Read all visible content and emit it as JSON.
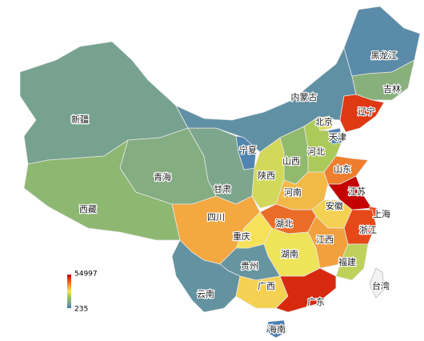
{
  "chart_data": {
    "type": "map",
    "regions": [
      {
        "name": "新疆",
        "value": 8000
      },
      {
        "name": "西藏",
        "value": 14000
      },
      {
        "name": "青海",
        "value": 11000
      },
      {
        "name": "甘肃",
        "value": 9000
      },
      {
        "name": "宁夏",
        "value": 1500
      },
      {
        "name": "内蒙古",
        "value": 4000
      },
      {
        "name": "黑龙江",
        "value": 3000
      },
      {
        "name": "吉林",
        "value": 12000
      },
      {
        "name": "辽宁",
        "value": 48000
      },
      {
        "name": "北京",
        "value": 25000
      },
      {
        "name": "天津",
        "value": 1000
      },
      {
        "name": "河北",
        "value": 20000
      },
      {
        "name": "山西",
        "value": 15000
      },
      {
        "name": "陕西",
        "value": 24000
      },
      {
        "name": "四川",
        "value": 35000
      },
      {
        "name": "重庆",
        "value": 28000
      },
      {
        "name": "山东",
        "value": 40000
      },
      {
        "name": "河南",
        "value": 33000
      },
      {
        "name": "江苏",
        "value": 54997
      },
      {
        "name": "上海",
        "value": 45000
      },
      {
        "name": "安徽",
        "value": 30000
      },
      {
        "name": "湖北",
        "value": 42000
      },
      {
        "name": "浙江",
        "value": 46000
      },
      {
        "name": "江西",
        "value": 36000
      },
      {
        "name": "湖南",
        "value": 27000
      },
      {
        "name": "福建",
        "value": 22000
      },
      {
        "name": "贵州",
        "value": 5000
      },
      {
        "name": "云南",
        "value": 4500
      },
      {
        "name": "广西",
        "value": 30000
      },
      {
        "name": "广东",
        "value": 50000
      },
      {
        "name": "台湾",
        "value": null
      },
      {
        "name": "海南",
        "value": 235
      }
    ],
    "visual_map": {
      "min": 235,
      "max": 54997,
      "colors": [
        "#4a7fb5",
        "#7fa88a",
        "#9dc55a",
        "#f5e55a",
        "#f29a3a",
        "#e64a19",
        "#c40000"
      ]
    },
    "no_data_color": "#f2f2f2"
  }
}
